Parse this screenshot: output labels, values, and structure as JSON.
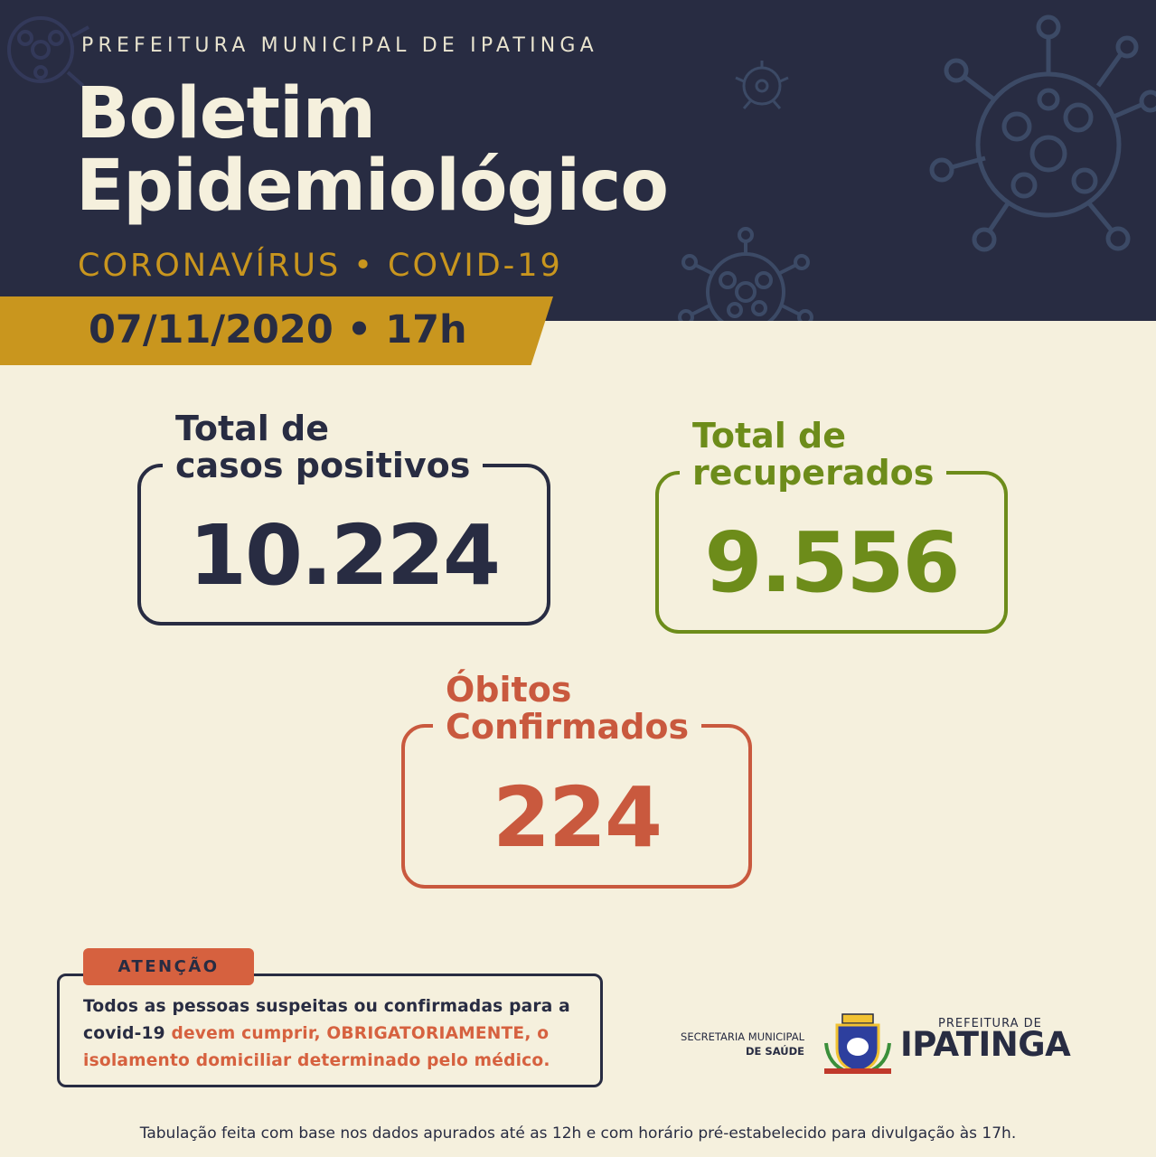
{
  "header": {
    "org": "PREFEITURA MUNICIPAL DE IPATINGA",
    "title_line1": "Boletim",
    "title_line2": "Epidemiológico",
    "subtitle": "CORONAVÍRUS • COVID-19",
    "date": "07/11/2020 • 17h"
  },
  "stats": {
    "positive": {
      "label_line1": "Total de",
      "label_line2": "casos positivos",
      "value": "10.224",
      "color": "#282c42"
    },
    "recovered": {
      "label_line1": "Total de",
      "label_line2": "recuperados",
      "value": "9.556",
      "color": "#6d8c1a"
    },
    "deaths": {
      "label_line1": "Óbitos",
      "label_line2": "Confirmados",
      "value": "224",
      "color": "#c9593e"
    }
  },
  "attention": {
    "tag": "ATENÇÃO",
    "text_part1": "Todos as pessoas suspeitas ou confirmadas para a covid-19 ",
    "text_part2": "devem cumprir, OBRIGATORIAMENTE, o isolamento domiciliar determinado pelo médico."
  },
  "logos": {
    "secretaria_line1": "SECRETARIA MUNICIPAL",
    "secretaria_line2": "DE SAÚDE",
    "prefeitura_small": "PREFEITURA DE",
    "prefeitura_big": "IPATINGA",
    "crest_icon": "city-crest-icon"
  },
  "footer": "Tabulação feita com base nos dados apurados até as 12h e com horário pré-estabelecido para divulgação às 17h.",
  "colors": {
    "navy": "#282c42",
    "gold": "#c9961e",
    "cream": "#f5f0dd",
    "green": "#6d8c1a",
    "red": "#c9593e"
  }
}
